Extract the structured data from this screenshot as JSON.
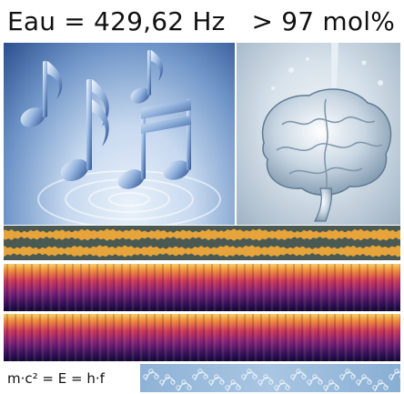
{
  "headline": {
    "left_text": "Eau = 429,62 Hz",
    "right_text": "> 97 mol%"
  },
  "formula": {
    "text": "m·c² = E = h·f"
  },
  "colors": {
    "text": "#111111",
    "waveform": "#e6a43a",
    "waveform_background": "#4a5a52",
    "molecule_background": "#9dbde0",
    "molecule_line": "#e9f1f9"
  },
  "waveform": {
    "mean_amplitude": 0.55
  }
}
